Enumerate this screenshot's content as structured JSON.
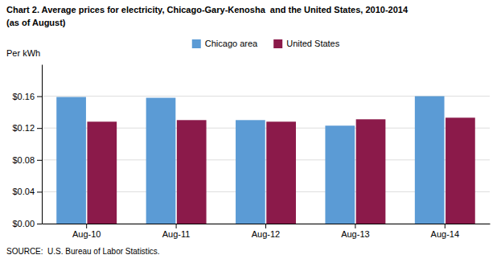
{
  "chart_data": {
    "type": "bar",
    "title": "Chart 2. Average prices for electricity, Chicago-Gary-Kenosha  and the United States, 2010-2014",
    "subtitle": "(as of August)",
    "ylabel": "Per kWh",
    "annotations": [
      "SOURCE:  U.S. Bureau of Labor Statistics."
    ],
    "categories": [
      "Aug-10",
      "Aug-11",
      "Aug-12",
      "Aug-13",
      "Aug-14"
    ],
    "series": [
      {
        "name": "Chicago area",
        "color": "#5B9BD5",
        "values": [
          0.159,
          0.158,
          0.13,
          0.123,
          0.16
        ]
      },
      {
        "name": "United States",
        "color": "#8B1A4A",
        "values": [
          0.128,
          0.13,
          0.128,
          0.131,
          0.133
        ]
      }
    ],
    "ylim": [
      0,
      0.2
    ],
    "yticks": [
      {
        "value": 0.0,
        "label": "$0.00"
      },
      {
        "value": 0.04,
        "label": "$0.04"
      },
      {
        "value": 0.08,
        "label": "$0.08"
      },
      {
        "value": 0.12,
        "label": "$0.12"
      },
      {
        "value": 0.16,
        "label": "$0.16"
      }
    ],
    "grid": true,
    "legend": "top"
  }
}
